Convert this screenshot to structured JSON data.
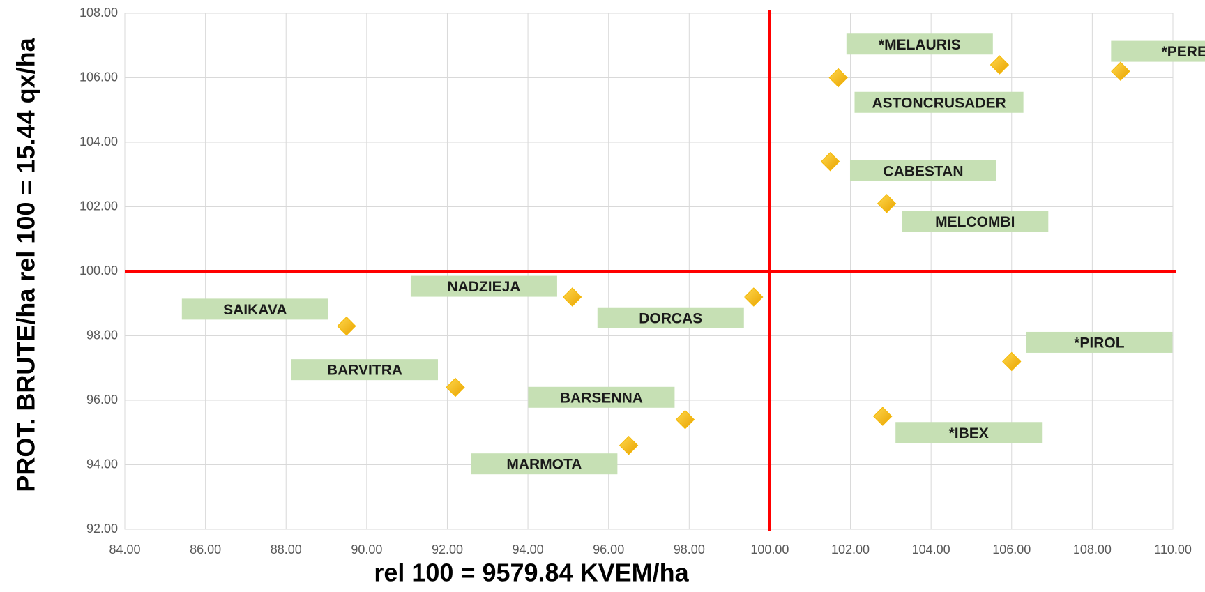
{
  "chart_data": {
    "type": "scatter",
    "x_label": "rel 100 = 9579.84 KVEM/ha",
    "y_label": "PROT. BRUTE/ha  rel 100 = 15.44 qx/ha",
    "xlim": [
      84,
      110
    ],
    "ylim": [
      92,
      108
    ],
    "xticks": [
      {
        "value": 84,
        "label": "84.00"
      },
      {
        "value": 86,
        "label": "86.00"
      },
      {
        "value": 88,
        "label": "88.00"
      },
      {
        "value": 90,
        "label": "90.00"
      },
      {
        "value": 92,
        "label": "92.00"
      },
      {
        "value": 94,
        "label": "94.00"
      },
      {
        "value": 96,
        "label": "96.00"
      },
      {
        "value": 98,
        "label": "98.00"
      },
      {
        "value": 100,
        "label": "100.00"
      },
      {
        "value": 102,
        "label": "102.00"
      },
      {
        "value": 104,
        "label": "104.00"
      },
      {
        "value": 106,
        "label": "106.00"
      },
      {
        "value": 108,
        "label": "108.00"
      },
      {
        "value": 110,
        "label": "110.00"
      }
    ],
    "yticks": [
      {
        "value": 92,
        "label": "92.00"
      },
      {
        "value": 94,
        "label": "94.00"
      },
      {
        "value": 96,
        "label": "96.00"
      },
      {
        "value": 98,
        "label": "98.00"
      },
      {
        "value": 100,
        "label": "100.00"
      },
      {
        "value": 102,
        "label": "102.00"
      },
      {
        "value": 104,
        "label": "104.00"
      },
      {
        "value": 106,
        "label": "106.00"
      },
      {
        "value": 108,
        "label": "108.00"
      }
    ],
    "grid": true,
    "reference_lines": {
      "x": 100,
      "y": 100,
      "color": "#ff0000"
    },
    "label_color": "#c6e0b4",
    "series": [
      {
        "color": "#f5b800",
        "labels": [
          "*MELAURIS",
          "ASTONCRUSADER",
          "CABESTAN",
          "MELCOMBI",
          "*PERE",
          "NADZIEJA",
          "DORCAS",
          "SAIKAVA",
          "BARVITRA",
          "BARSENNA",
          "MARMOTA",
          "*PIROL",
          "*IBEX"
        ],
        "x": [
          105.7,
          101.7,
          101.5,
          102.9,
          108.7,
          95.1,
          99.6,
          89.5,
          92.2,
          97.9,
          96.5,
          106.0,
          102.8
        ],
        "values": [
          106.4,
          106.0,
          103.4,
          102.1,
          106.2,
          99.2,
          99.2,
          98.3,
          96.4,
          95.4,
          94.6,
          97.2,
          95.5
        ]
      }
    ]
  }
}
